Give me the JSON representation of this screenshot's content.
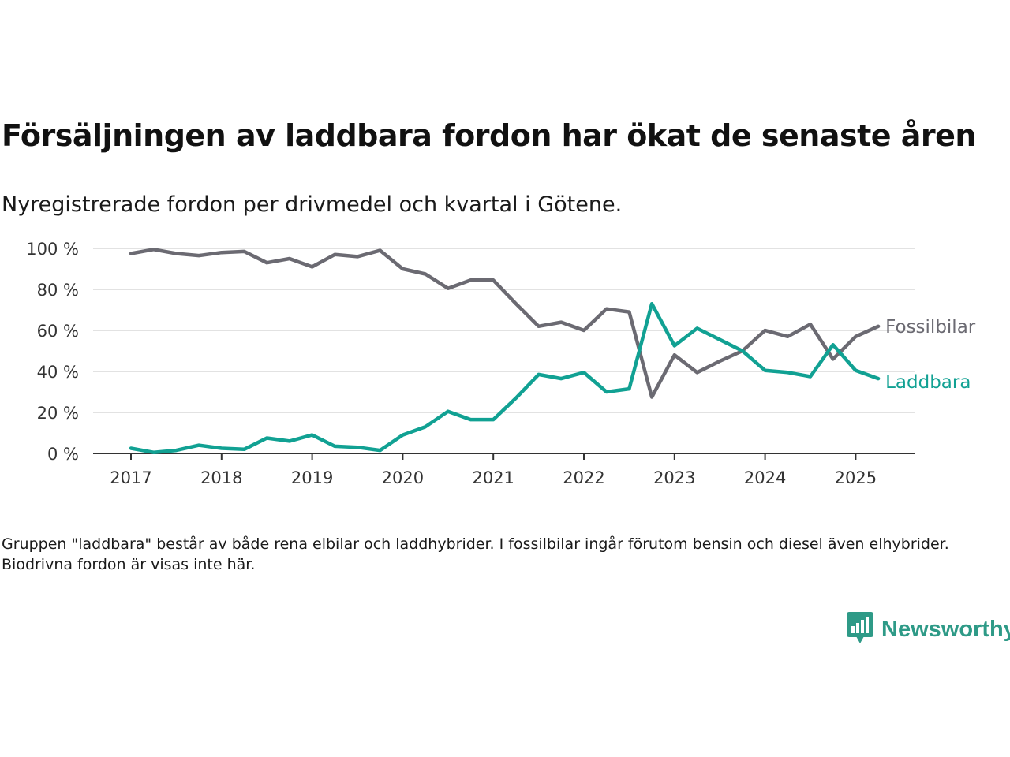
{
  "title": "Försäljningen av laddbara fordon har ökat de senaste åren",
  "subtitle": "Nyregistrerade fordon per drivmedel och kvartal i Götene.",
  "note": "Gruppen \"laddbara\" består av både rena elbilar och laddhybrider. I fossilbilar ingår förutom bensin och diesel även elhybrider. Biodrivna fordon är visas inte här.",
  "brand": {
    "name": "Newsworthy",
    "icon": "newsworthy-logo-icon",
    "color": "#2e9a87"
  },
  "chart_data": {
    "type": "line",
    "title": "Försäljningen av laddbara fordon har ökat de senaste åren",
    "subtitle": "Nyregistrerade fordon per drivmedel och kvartal i Götene.",
    "xlabel": "",
    "ylabel": "",
    "ylim": [
      0,
      100
    ],
    "yticks": [
      0,
      20,
      40,
      60,
      80,
      100
    ],
    "ytick_labels": [
      "0 %",
      "20 %",
      "40 %",
      "60 %",
      "80 %",
      "100 %"
    ],
    "xlim": [
      2017,
      2025.375
    ],
    "xticks": [
      2017,
      2018,
      2019,
      2020,
      2021,
      2022,
      2023,
      2024,
      2025
    ],
    "xtick_labels": [
      "2017",
      "2018",
      "2019",
      "2020",
      "2021",
      "2022",
      "2023",
      "2024",
      "2025"
    ],
    "grid": "horizontal",
    "legend": "inline labels at line ends",
    "x": [
      2017,
      2017.25,
      2017.5,
      2017.75,
      2018,
      2018.25,
      2018.5,
      2018.75,
      2019,
      2019.25,
      2019.5,
      2019.75,
      2020,
      2020.25,
      2020.5,
      2020.75,
      2021,
      2021.25,
      2021.5,
      2021.75,
      2022,
      2022.25,
      2022.5,
      2022.75,
      2023,
      2023.25,
      2023.5,
      2023.75,
      2024,
      2024.25,
      2024.5,
      2024.75,
      2025,
      2025.25
    ],
    "series": [
      {
        "name": "Fossilbilar",
        "color": "#6b6a72",
        "values": [
          97.5,
          99.5,
          97.5,
          96.5,
          98,
          98.5,
          93,
          95,
          91,
          97,
          96,
          99,
          90,
          87.5,
          80.5,
          84.5,
          84.5,
          73,
          62,
          64,
          60,
          70.5,
          69,
          27.5,
          48,
          39.5,
          45,
          50,
          60,
          57,
          63,
          46,
          57,
          62
        ]
      },
      {
        "name": "Laddbara",
        "color": "#11a193",
        "values": [
          2.5,
          0.5,
          1.5,
          4,
          2.5,
          2,
          7.5,
          6,
          9,
          3.5,
          3,
          1.5,
          9,
          13,
          20.5,
          16.5,
          16.5,
          27,
          38.5,
          36.5,
          39.5,
          30,
          31.5,
          73,
          52.5,
          61,
          55.5,
          50,
          40.5,
          39.5,
          37.5,
          53,
          40.5,
          36.5
        ]
      }
    ]
  }
}
